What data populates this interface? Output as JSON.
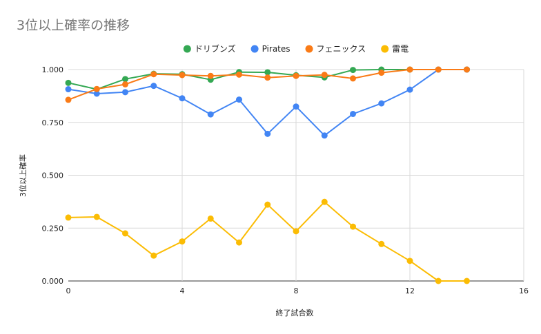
{
  "chart_data": {
    "type": "line",
    "title": "3位以上確率の推移",
    "xlabel": "終了試合数",
    "ylabel": "3位以上確率",
    "xlim": [
      0,
      16
    ],
    "ylim": [
      0,
      1
    ],
    "x_ticks": [
      "0",
      "4",
      "8",
      "12",
      "16"
    ],
    "x_tick_values": [
      0,
      4,
      8,
      12,
      16
    ],
    "y_ticks": [
      "0.000",
      "0.250",
      "0.500",
      "0.750",
      "1.000"
    ],
    "y_tick_values": [
      0,
      0.25,
      0.5,
      0.75,
      1
    ],
    "grid": true,
    "legend_position": "top",
    "x": [
      0,
      1,
      2,
      3,
      4,
      5,
      6,
      7,
      8,
      9,
      10,
      11,
      12,
      13,
      14
    ],
    "series": [
      {
        "name": "ドリブンズ",
        "color": "#34a853",
        "values": [
          0.937,
          0.907,
          0.955,
          0.98,
          0.978,
          0.952,
          0.988,
          0.987,
          0.973,
          0.963,
          0.998,
          1.0,
          1.0,
          1.0,
          1.0
        ]
      },
      {
        "name": "Pirates",
        "color": "#4285f4",
        "values": [
          0.907,
          0.886,
          0.893,
          0.923,
          0.864,
          0.788,
          0.858,
          0.696,
          0.825,
          0.688,
          0.79,
          0.84,
          0.905,
          1.0,
          1.0
        ]
      },
      {
        "name": "フェニックス",
        "color": "#fa7b17",
        "values": [
          0.857,
          0.908,
          0.93,
          0.978,
          0.974,
          0.97,
          0.976,
          0.962,
          0.97,
          0.975,
          0.958,
          0.985,
          1.0,
          1.0,
          1.0
        ]
      },
      {
        "name": "雷電",
        "color": "#fbbc04",
        "values": [
          0.3,
          0.303,
          0.225,
          0.12,
          0.187,
          0.295,
          0.182,
          0.361,
          0.235,
          0.374,
          0.257,
          0.175,
          0.095,
          0.0,
          0.0
        ]
      }
    ]
  }
}
